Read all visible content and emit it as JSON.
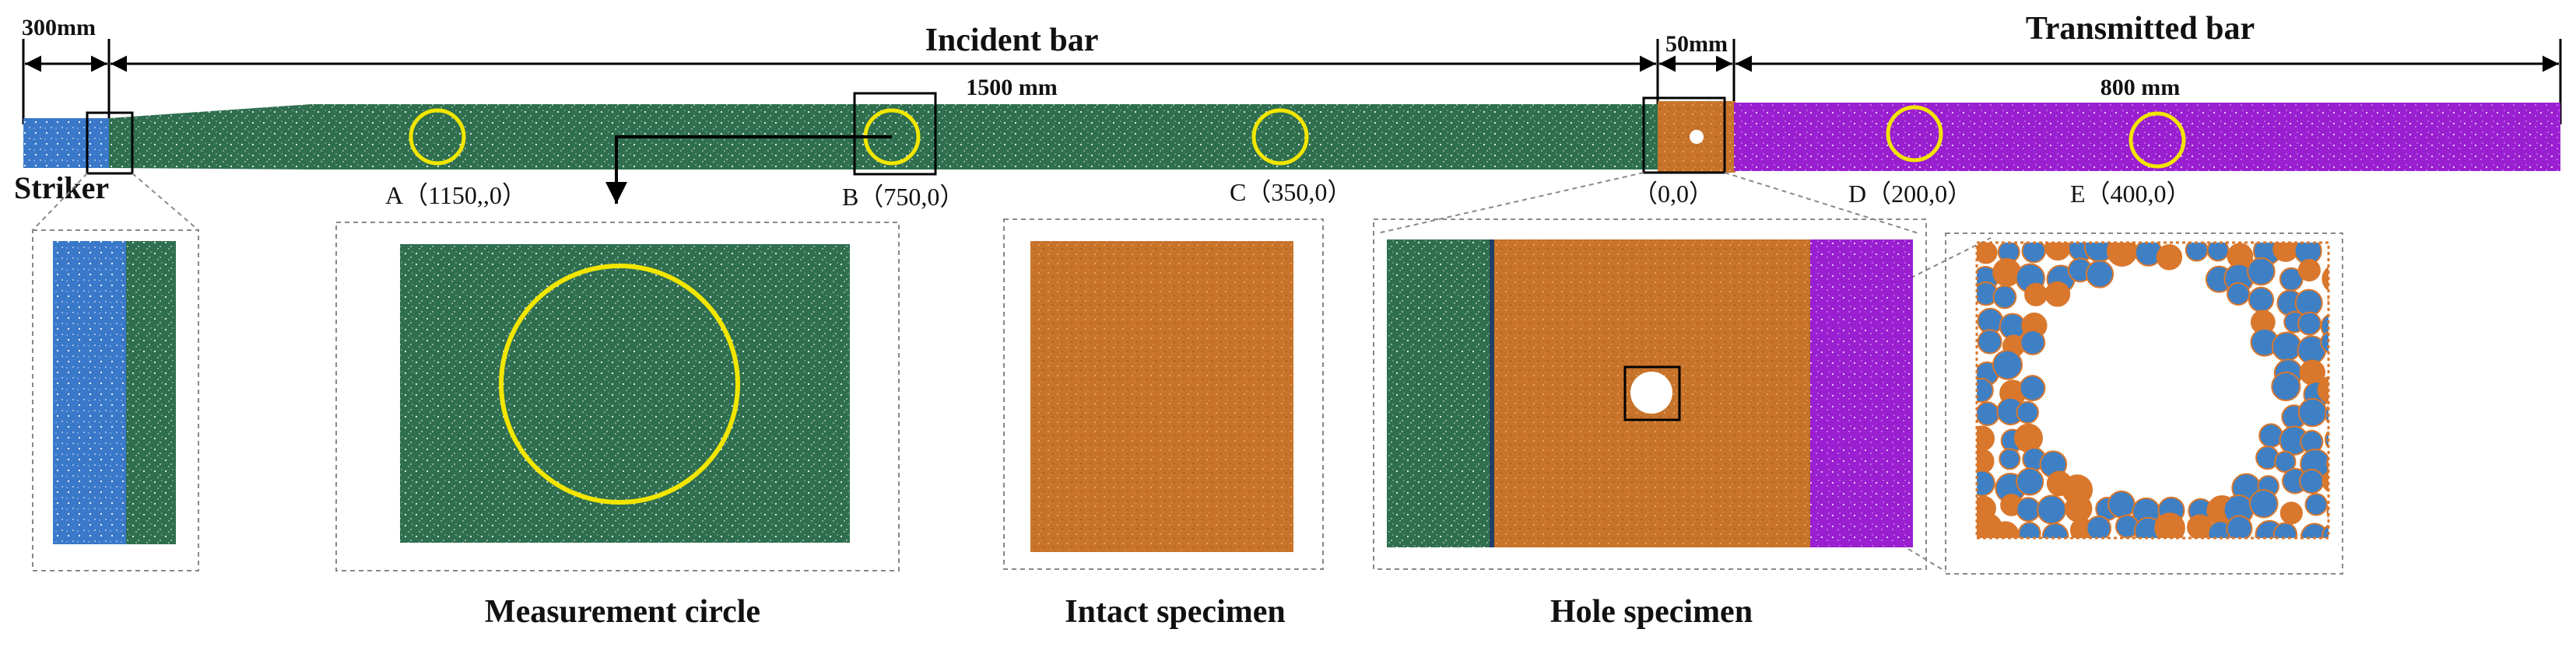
{
  "labels": {
    "dim_striker": "300mm",
    "dim_incident": "1500 mm",
    "dim_specimen": "50mm",
    "dim_transmitted": "800 mm",
    "incident_bar": "Incident bar",
    "transmitted_bar": "Transmitted bar",
    "striker": "Striker",
    "point_a": "A（1150,,0）",
    "point_b": "B（750,0）",
    "point_c": "C（350,0）",
    "point_origin": "（0,0）",
    "point_d": "D（200,0）",
    "point_e": "E（400,0）",
    "caption_measurement": "Measurement circle",
    "caption_intact": "Intact specimen",
    "caption_hole": "Hole specimen"
  },
  "colors": {
    "striker": "#3a78c9",
    "incident": "#2f6f4f",
    "specimen": "#c8732a",
    "transmitted": "#9a1fd0",
    "circle": "#f2e600",
    "grain_orange": "#d9772c",
    "grain_blue": "#3f80c4"
  }
}
